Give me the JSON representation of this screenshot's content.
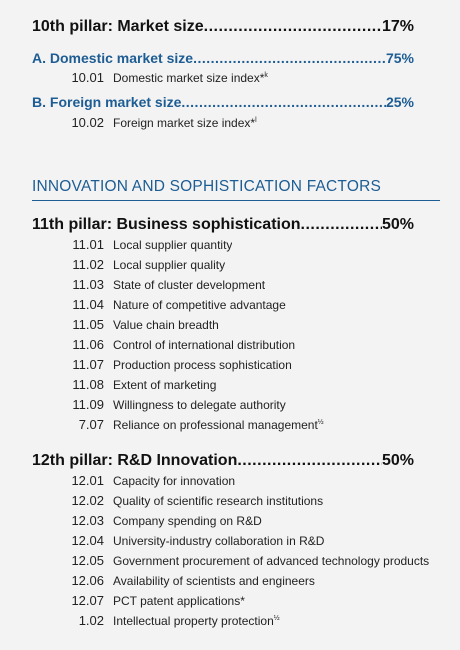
{
  "pillar10": {
    "title": "10th pillar: Market size",
    "pct": "17%"
  },
  "sub_a": {
    "title": "A. Domestic market size",
    "pct": "75%"
  },
  "item_1001": {
    "code": "10.01",
    "name": "Domestic market size index*",
    "mark": "k"
  },
  "sub_b": {
    "title": "B. Foreign market size",
    "pct": "25%"
  },
  "item_1002": {
    "code": "10.02",
    "name": "Foreign market size index*",
    "mark": "l"
  },
  "section_title": "INNOVATION AND SOPHISTICATION FACTORS",
  "pillar11": {
    "title": "11th pillar: Business sophistication",
    "pct": "50%",
    "items": [
      {
        "code": "11.01",
        "name": "Local supplier quantity",
        "mark": ""
      },
      {
        "code": "11.02",
        "name": "Local supplier quality",
        "mark": ""
      },
      {
        "code": "11.03",
        "name": "State of cluster development",
        "mark": ""
      },
      {
        "code": "11.04",
        "name": "Nature of competitive advantage",
        "mark": ""
      },
      {
        "code": "11.05",
        "name": "Value chain breadth",
        "mark": ""
      },
      {
        "code": "11.06",
        "name": "Control of international distribution",
        "mark": ""
      },
      {
        "code": "11.07",
        "name": "Production process sophistication",
        "mark": ""
      },
      {
        "code": "11.08",
        "name": "Extent of marketing",
        "mark": ""
      },
      {
        "code": "11.09",
        "name": "Willingness to delegate authority",
        "mark": ""
      },
      {
        "code": "7.07",
        "name": "Reliance on professional management",
        "mark": "½"
      }
    ]
  },
  "pillar12": {
    "title": "12th pillar: R&D Innovation",
    "pct": "50%",
    "items": [
      {
        "code": "12.01",
        "name": "Capacity for innovation",
        "mark": ""
      },
      {
        "code": "12.02",
        "name": "Quality of scientific research institutions",
        "mark": ""
      },
      {
        "code": "12.03",
        "name": "Company spending on R&D",
        "mark": ""
      },
      {
        "code": "12.04",
        "name": "University-industry collaboration in R&D",
        "mark": ""
      },
      {
        "code": "12.05",
        "name": "Government procurement of advanced technology products",
        "mark": ""
      },
      {
        "code": "12.06",
        "name": "Availability of scientists and engineers",
        "mark": ""
      },
      {
        "code": "12.07",
        "name": "PCT patent applications*",
        "mark": ""
      },
      {
        "code": "1.02",
        "name": "Intellectual property protection",
        "mark": "½"
      }
    ]
  }
}
